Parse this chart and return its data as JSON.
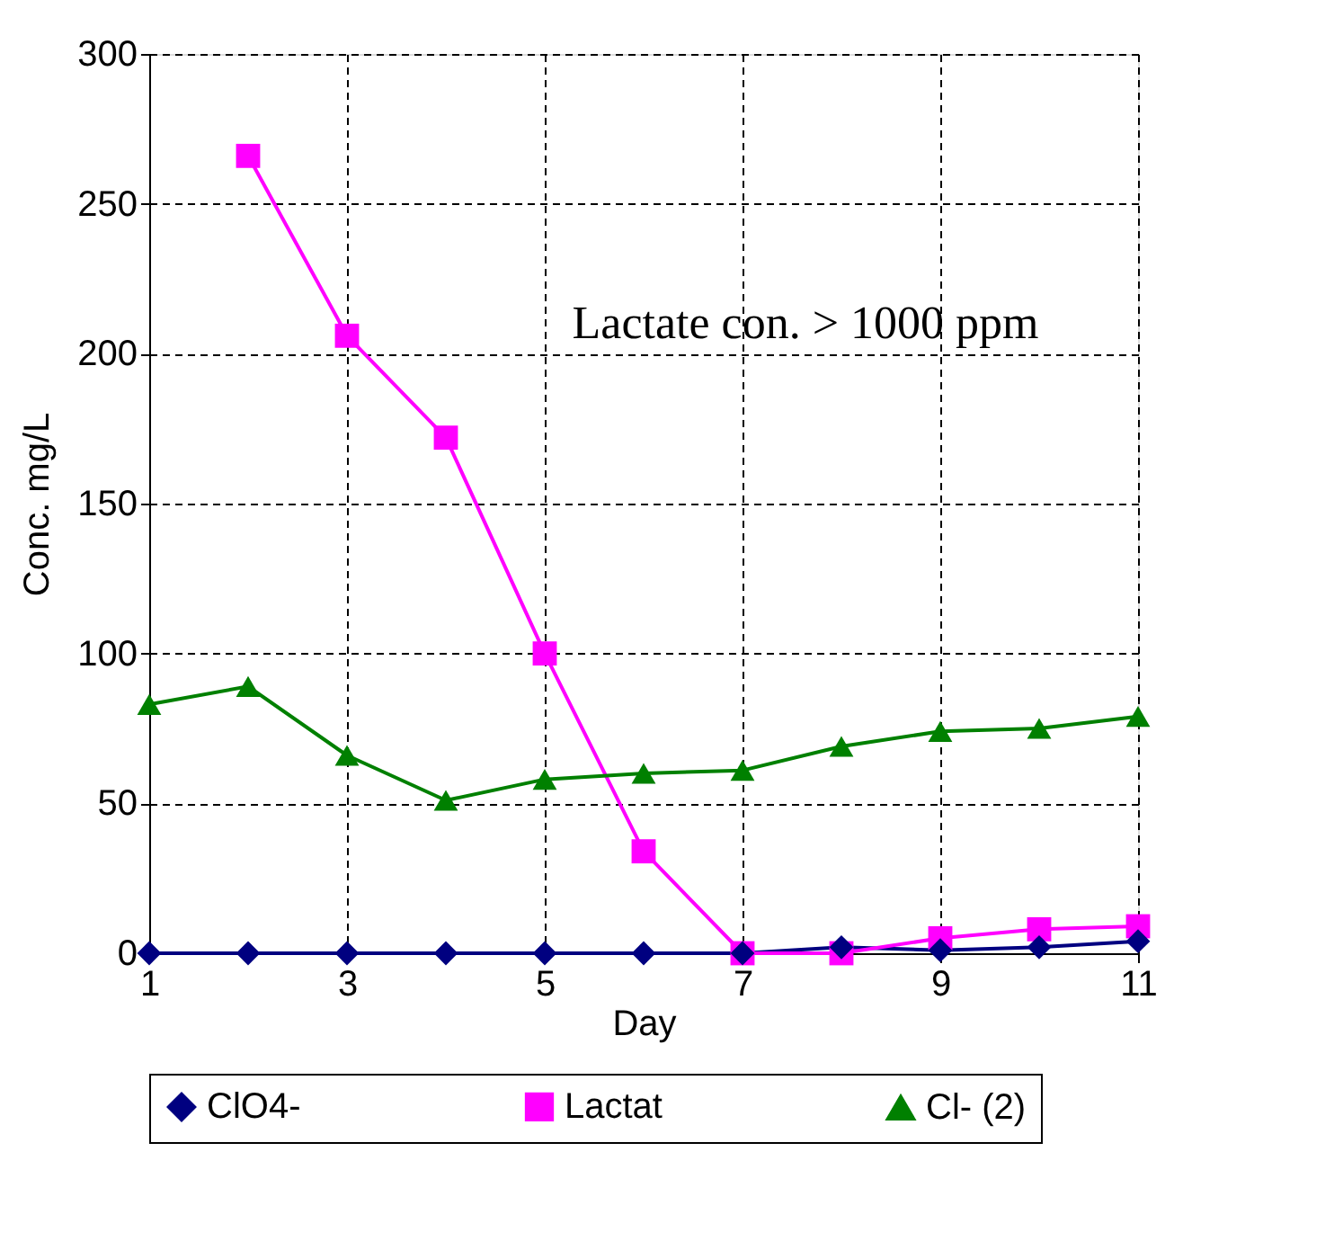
{
  "chart_data": {
    "type": "line",
    "xlabel": "Day",
    "ylabel": "Conc. mg/L",
    "x": [
      1,
      2,
      3,
      4,
      5,
      6,
      7,
      8,
      9,
      10,
      11
    ],
    "series": [
      {
        "name": "ClO4-",
        "color": "#000080",
        "marker": "diamond",
        "values": [
          0,
          0,
          0,
          0,
          0,
          0,
          0,
          2,
          1,
          2,
          4
        ]
      },
      {
        "name": "Lactat",
        "color": "#ff00ff",
        "marker": "square",
        "values": [
          null,
          266,
          206,
          172,
          100,
          34,
          0,
          0,
          5,
          8,
          9
        ]
      },
      {
        "name": "Cl- (2)",
        "color": "#008000",
        "marker": "triangle",
        "values": [
          83,
          89,
          66,
          51,
          58,
          60,
          61,
          69,
          74,
          75,
          79
        ]
      }
    ],
    "xlim": [
      1,
      11
    ],
    "xticks": [
      1,
      3,
      5,
      7,
      9,
      11
    ],
    "ylim": [
      0,
      300
    ],
    "yticks": [
      0,
      50,
      100,
      150,
      200,
      250,
      300
    ],
    "grid": true,
    "legend": "bottom",
    "line_style": "solid",
    "annotations": [
      "Lactate con. > 1000 ppm"
    ]
  }
}
